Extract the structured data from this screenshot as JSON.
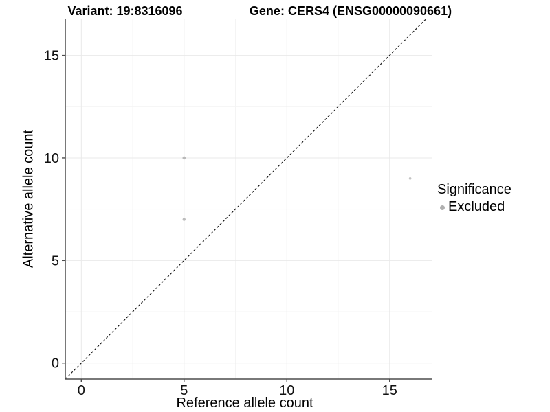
{
  "titles": {
    "variant": "Variant: 19:8316096",
    "gene": "Gene: CERS4 (ENSG00000090661)"
  },
  "chart_data": {
    "type": "scatter",
    "xlabel": "Reference allele count",
    "ylabel": "Alternative allele count",
    "xticks": [
      0,
      5,
      10,
      15
    ],
    "yticks": [
      0,
      5,
      10,
      15
    ],
    "minor_xticks": [
      2.5,
      7.5,
      12.5
    ],
    "minor_yticks": [
      2.5,
      7.5,
      12.5
    ],
    "xlim": [
      -0.78,
      17.05
    ],
    "ylim": [
      -0.78,
      16.76
    ],
    "grid": {
      "major_color": "#e9e9e9",
      "minor_color": "#f4f4f4",
      "on": true
    },
    "axis_color": "#4d4d4d",
    "points": [
      {
        "x": 5,
        "y": 10,
        "r": 2.3,
        "color": "#b9b9b9",
        "significance": "Excluded"
      },
      {
        "x": 5,
        "y": 7,
        "r": 2.2,
        "color": "#bcbcbc",
        "significance": "Excluded"
      },
      {
        "x": 16,
        "y": 9,
        "r": 1.8,
        "color": "#c3c3c3",
        "significance": "Excluded"
      }
    ],
    "identity_line": {
      "equation": "y = x",
      "style": "dashed",
      "color": "#1a1a1a"
    },
    "legend": {
      "title": "Significance",
      "position": "right",
      "entries": [
        {
          "label": "Excluded",
          "color": "#b0b0b0"
        }
      ]
    }
  }
}
